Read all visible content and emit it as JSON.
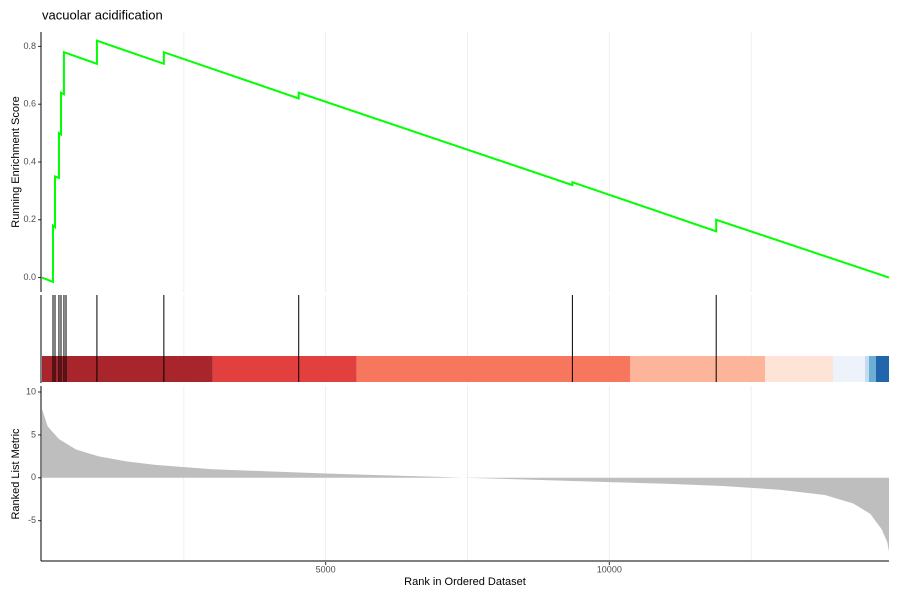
{
  "chart_data": [
    {
      "type": "line",
      "title": "vacuolar acidification",
      "ylabel": "Running Enrichment Score",
      "x": [
        0,
        194,
        194,
        229,
        229,
        299,
        299,
        335,
        335,
        387,
        387,
        968,
        968,
        2148,
        2148,
        4525,
        4525,
        9349,
        9349,
        11884,
        11884,
        14930
      ],
      "values": [
        0,
        -0.015,
        0.18,
        0.175,
        0.35,
        0.345,
        0.5,
        0.495,
        0.64,
        0.635,
        0.78,
        0.74,
        0.82,
        0.74,
        0.78,
        0.62,
        0.64,
        0.32,
        0.33,
        0.16,
        0.2,
        0
      ],
      "color": "#00ff00",
      "xlim": [
        0,
        14930
      ],
      "ylim": [
        -0.05,
        0.85
      ],
      "yticks": [
        {
          "value": 0,
          "label": "0.0"
        },
        0.2,
        0.4,
        0.6,
        0.8
      ],
      "xgrid": [
        2500,
        5000,
        7500,
        10000,
        12500
      ]
    },
    {
      "type": "rug",
      "hits": [
        194,
        229,
        299,
        335,
        387,
        423,
        968,
        2148,
        4525,
        9349,
        11884
      ],
      "color": "#000000",
      "bar_edges": [
        0,
        3011,
        5546,
        10370,
        12747,
        13944,
        14507,
        14577,
        14700,
        14930
      ],
      "bar_colors": [
        "#a8262b",
        "#e2403f",
        "#f7765e",
        "#fcb49a",
        "#fee3d7",
        "#eef3fb",
        "#c6dbef",
        "#6baed6",
        "#2166ac"
      ],
      "xlim": [
        0,
        14930
      ],
      "xgrid": [
        2500,
        5000,
        7500,
        10000,
        12500
      ]
    },
    {
      "type": "area",
      "ylabel": "Ranked List Metric",
      "xlabel": "Rank in Ordered Dataset",
      "x": [
        0,
        100,
        300,
        600,
        1000,
        1500,
        2000,
        3000,
        4000,
        5000,
        6000,
        7000,
        7400,
        8000,
        9000,
        10000,
        11000,
        12000,
        13000,
        13800,
        14300,
        14600,
        14800,
        14900,
        14930
      ],
      "values": [
        8,
        6,
        4.5,
        3.3,
        2.5,
        1.9,
        1.5,
        1.0,
        0.75,
        0.5,
        0.3,
        0.1,
        0,
        -0.1,
        -0.3,
        -0.5,
        -0.7,
        -0.95,
        -1.4,
        -2.0,
        -3.0,
        -4.2,
        -6,
        -7.5,
        -8.6
      ],
      "color": "#bebebe",
      "xlim": [
        0,
        14930
      ],
      "ylim": [
        -9.7,
        10.7
      ],
      "yticks": [
        -5,
        0,
        5,
        10
      ],
      "xticks": [
        5000,
        10000
      ],
      "xgrid": [
        2500,
        5000,
        7500,
        10000,
        12500
      ]
    }
  ]
}
